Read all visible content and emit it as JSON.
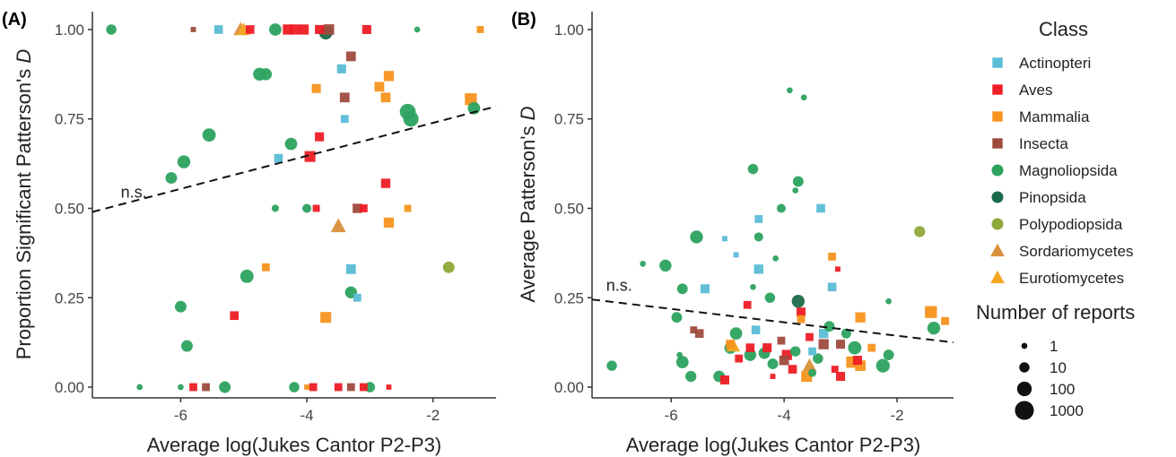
{
  "colors": {
    "Actinopteri": "#5bbcd6",
    "Aves": "#ee1c25",
    "Mammalia": "#f7941d",
    "Insecta": "#9e4b3c",
    "Magnoliopsida": "#2ca25f",
    "Pinopsida": "#1b6b4a",
    "Polypodiopsida": "#8ea93a",
    "Sordariomycetes": "#d9903a",
    "Eurotiomycetes": "#f5a623"
  },
  "legend": {
    "class_title": "Class",
    "classes": [
      {
        "name": "Actinopteri",
        "shape": "square"
      },
      {
        "name": "Aves",
        "shape": "square"
      },
      {
        "name": "Mammalia",
        "shape": "square"
      },
      {
        "name": "Insecta",
        "shape": "square"
      },
      {
        "name": "Magnoliopsida",
        "shape": "circle"
      },
      {
        "name": "Pinopsida",
        "shape": "circle"
      },
      {
        "name": "Polypodiopsida",
        "shape": "circle"
      },
      {
        "name": "Sordariomycetes",
        "shape": "triangle"
      },
      {
        "name": "Eurotiomycetes",
        "shape": "triangle"
      }
    ],
    "size_title": "Number of reports",
    "sizes": [
      {
        "label": "1",
        "n": 1
      },
      {
        "label": "10",
        "n": 10
      },
      {
        "label": "100",
        "n": 100
      },
      {
        "label": "1000",
        "n": 1000
      }
    ]
  },
  "chart_data": [
    {
      "type": "scatter",
      "panel_label": "(A)",
      "xlabel": "Average log(Jukes Cantor P2-P3)",
      "ylabel_prefix": "Proportion Significant Patterson's ",
      "ylabel_italic": "D",
      "xlim": [
        -7.4,
        -1.0
      ],
      "ylim": [
        -0.03,
        1.05
      ],
      "xticks": [
        -6,
        -4,
        -2
      ],
      "xtick_labels": [
        "-6",
        "-4",
        "-2"
      ],
      "yticks": [
        0,
        0.25,
        0.5,
        0.75,
        1.0
      ],
      "ytick_labels": [
        "0.00",
        "0.25",
        "0.50",
        "0.75",
        "1.00"
      ],
      "trend": {
        "style": "dashed",
        "label": "n.s.",
        "label_x": -6.95,
        "label_y": 0.53,
        "x": [
          -7.4,
          -1.0
        ],
        "y": [
          0.49,
          0.785
        ]
      },
      "points": [
        {
          "x": -7.1,
          "y": 1.0,
          "c": "Magnoliopsida",
          "n": 10
        },
        {
          "x": -6.65,
          "y": 0.0,
          "c": "Magnoliopsida",
          "n": 1
        },
        {
          "x": -6.15,
          "y": 0.585,
          "c": "Magnoliopsida",
          "n": 20
        },
        {
          "x": -5.95,
          "y": 0.63,
          "c": "Magnoliopsida",
          "n": 40
        },
        {
          "x": -6.0,
          "y": 0.225,
          "c": "Magnoliopsida",
          "n": 20
        },
        {
          "x": -5.9,
          "y": 0.115,
          "c": "Magnoliopsida",
          "n": 20
        },
        {
          "x": -6.0,
          "y": 0.0,
          "c": "Magnoliopsida",
          "n": 1
        },
        {
          "x": -5.8,
          "y": 0.0,
          "c": "Aves",
          "n": 5
        },
        {
          "x": -5.6,
          "y": 0.0,
          "c": "Insecta",
          "n": 5
        },
        {
          "x": -5.55,
          "y": 0.705,
          "c": "Magnoliopsida",
          "n": 50
        },
        {
          "x": -5.8,
          "y": 1.0,
          "c": "Insecta",
          "n": 1
        },
        {
          "x": -5.4,
          "y": 1.0,
          "c": "Actinopteri",
          "n": 8
        },
        {
          "x": -5.15,
          "y": 0.2,
          "c": "Aves",
          "n": 8
        },
        {
          "x": -4.95,
          "y": 0.31,
          "c": "Magnoliopsida",
          "n": 50
        },
        {
          "x": -5.3,
          "y": 0.0,
          "c": "Magnoliopsida",
          "n": 20
        },
        {
          "x": -5.05,
          "y": 1.0,
          "c": "Sordariomycetes",
          "n": 25
        },
        {
          "x": -5.0,
          "y": 1.0,
          "c": "Eurotiomycetes",
          "n": 15
        },
        {
          "x": -4.9,
          "y": 1.0,
          "c": "Aves",
          "n": 8
        },
        {
          "x": -4.75,
          "y": 0.875,
          "c": "Magnoliopsida",
          "n": 40
        },
        {
          "x": -4.65,
          "y": 0.875,
          "c": "Magnoliopsida",
          "n": 25
        },
        {
          "x": -4.65,
          "y": 0.335,
          "c": "Mammalia",
          "n": 5
        },
        {
          "x": -4.5,
          "y": 1.0,
          "c": "Magnoliopsida",
          "n": 30
        },
        {
          "x": -4.5,
          "y": 0.5,
          "c": "Magnoliopsida",
          "n": 2
        },
        {
          "x": -4.45,
          "y": 0.64,
          "c": "Actinopteri",
          "n": 8
        },
        {
          "x": -4.3,
          "y": 1.0,
          "c": "Aves",
          "n": 20
        },
        {
          "x": -4.2,
          "y": 1.0,
          "c": "Aves",
          "n": 20
        },
        {
          "x": -4.25,
          "y": 0.68,
          "c": "Magnoliopsida",
          "n": 30
        },
        {
          "x": -4.2,
          "y": 0.0,
          "c": "Magnoliopsida",
          "n": 10
        },
        {
          "x": -4.0,
          "y": 0.5,
          "c": "Magnoliopsida",
          "n": 5
        },
        {
          "x": -3.95,
          "y": 0.645,
          "c": "Aves",
          "n": 30
        },
        {
          "x": -4.05,
          "y": 1.0,
          "c": "Aves",
          "n": 20
        },
        {
          "x": -4.0,
          "y": 0.0,
          "c": "Mammalia",
          "n": 1
        },
        {
          "x": -3.9,
          "y": 0.0,
          "c": "Aves",
          "n": 5
        },
        {
          "x": -3.85,
          "y": 0.835,
          "c": "Mammalia",
          "n": 10
        },
        {
          "x": -3.8,
          "y": 0.7,
          "c": "Aves",
          "n": 10
        },
        {
          "x": -3.85,
          "y": 0.5,
          "c": "Aves",
          "n": 3
        },
        {
          "x": -3.8,
          "y": 1.0,
          "c": "Aves",
          "n": 10
        },
        {
          "x": -3.7,
          "y": 0.99,
          "c": "Pinopsida",
          "n": 40
        },
        {
          "x": -3.65,
          "y": 1.0,
          "c": "Insecta",
          "n": 25
        },
        {
          "x": -3.7,
          "y": 0.195,
          "c": "Mammalia",
          "n": 30
        },
        {
          "x": -3.5,
          "y": 0.0,
          "c": "Aves",
          "n": 5
        },
        {
          "x": -3.5,
          "y": 0.45,
          "c": "Sordariomycetes",
          "n": 35
        },
        {
          "x": -3.45,
          "y": 0.89,
          "c": "Actinopteri",
          "n": 10
        },
        {
          "x": -3.4,
          "y": 0.75,
          "c": "Actinopteri",
          "n": 5
        },
        {
          "x": -3.4,
          "y": 0.81,
          "c": "Insecta",
          "n": 15
        },
        {
          "x": -3.3,
          "y": 0.925,
          "c": "Insecta",
          "n": 15
        },
        {
          "x": -3.3,
          "y": 0.265,
          "c": "Magnoliopsida",
          "n": 25
        },
        {
          "x": -3.3,
          "y": 0.33,
          "c": "Actinopteri",
          "n": 15
        },
        {
          "x": -3.2,
          "y": 0.25,
          "c": "Actinopteri",
          "n": 5
        },
        {
          "x": -3.2,
          "y": 0.5,
          "c": "Insecta",
          "n": 12
        },
        {
          "x": -3.1,
          "y": 0.0,
          "c": "Aves",
          "n": 5
        },
        {
          "x": -3.1,
          "y": 0.5,
          "c": "Aves",
          "n": 5
        },
        {
          "x": -3.3,
          "y": 0.0,
          "c": "Insecta",
          "n": 5
        },
        {
          "x": -3.0,
          "y": 0.0,
          "c": "Magnoliopsida",
          "n": 10
        },
        {
          "x": -3.05,
          "y": 1.0,
          "c": "Aves",
          "n": 10
        },
        {
          "x": -2.85,
          "y": 0.84,
          "c": "Mammalia",
          "n": 15
        },
        {
          "x": -2.75,
          "y": 0.81,
          "c": "Mammalia",
          "n": 15
        },
        {
          "x": -2.75,
          "y": 0.57,
          "c": "Aves",
          "n": 12
        },
        {
          "x": -2.7,
          "y": 0.87,
          "c": "Mammalia",
          "n": 20
        },
        {
          "x": -2.7,
          "y": 0.46,
          "c": "Mammalia",
          "n": 20
        },
        {
          "x": -2.7,
          "y": 0.0,
          "c": "Aves",
          "n": 1
        },
        {
          "x": -2.4,
          "y": 0.77,
          "c": "Magnoliopsida",
          "n": 200
        },
        {
          "x": -2.4,
          "y": 0.5,
          "c": "Mammalia",
          "n": 3
        },
        {
          "x": -2.35,
          "y": 0.75,
          "c": "Magnoliopsida",
          "n": 150
        },
        {
          "x": -2.25,
          "y": 1.0,
          "c": "Magnoliopsida",
          "n": 1
        },
        {
          "x": -1.75,
          "y": 0.335,
          "c": "Polypodiopsida",
          "n": 20
        },
        {
          "x": -1.4,
          "y": 0.805,
          "c": "Mammalia",
          "n": 60
        },
        {
          "x": -1.35,
          "y": 0.78,
          "c": "Magnoliopsida",
          "n": 30
        },
        {
          "x": -1.25,
          "y": 1.0,
          "c": "Mammalia",
          "n": 3
        }
      ]
    },
    {
      "type": "scatter",
      "panel_label": "(B)",
      "xlabel": "Average log(Jukes Cantor P2-P3)",
      "ylabel_prefix": "Average Patterson's ",
      "ylabel_italic": "D",
      "xlim": [
        -7.4,
        -1.0
      ],
      "ylim": [
        -0.03,
        1.05
      ],
      "xticks": [
        -6,
        -4,
        -2
      ],
      "xtick_labels": [
        "-6",
        "-4",
        "-2"
      ],
      "yticks": [
        0,
        0.25,
        0.5,
        0.75,
        1.0
      ],
      "ytick_labels": [
        "0.00",
        "0.25",
        "0.50",
        "0.75",
        "1.00"
      ],
      "trend": {
        "style": "dashed",
        "label": "n.s.",
        "label_x": -7.15,
        "label_y": 0.27,
        "x": [
          -7.4,
          -1.0
        ],
        "y": [
          0.245,
          0.125
        ]
      },
      "points": [
        {
          "x": -7.05,
          "y": 0.06,
          "c": "Magnoliopsida",
          "n": 10
        },
        {
          "x": -6.5,
          "y": 0.345,
          "c": "Magnoliopsida",
          "n": 1
        },
        {
          "x": -6.1,
          "y": 0.34,
          "c": "Magnoliopsida",
          "n": 25
        },
        {
          "x": -5.9,
          "y": 0.195,
          "c": "Magnoliopsida",
          "n": 12
        },
        {
          "x": -5.85,
          "y": 0.09,
          "c": "Magnoliopsida",
          "n": 1
        },
        {
          "x": -5.8,
          "y": 0.275,
          "c": "Magnoliopsida",
          "n": 12
        },
        {
          "x": -5.8,
          "y": 0.07,
          "c": "Magnoliopsida",
          "n": 30
        },
        {
          "x": -5.65,
          "y": 0.03,
          "c": "Magnoliopsida",
          "n": 15
        },
        {
          "x": -5.6,
          "y": 0.16,
          "c": "Insecta",
          "n": 3
        },
        {
          "x": -5.55,
          "y": 0.42,
          "c": "Magnoliopsida",
          "n": 40
        },
        {
          "x": -5.5,
          "y": 0.15,
          "c": "Insecta",
          "n": 8
        },
        {
          "x": -5.4,
          "y": 0.275,
          "c": "Actinopteri",
          "n": 10
        },
        {
          "x": -5.15,
          "y": 0.03,
          "c": "Magnoliopsida",
          "n": 20
        },
        {
          "x": -5.05,
          "y": 0.02,
          "c": "Aves",
          "n": 10
        },
        {
          "x": -5.05,
          "y": 0.415,
          "c": "Actinopteri",
          "n": 1
        },
        {
          "x": -4.95,
          "y": 0.11,
          "c": "Magnoliopsida",
          "n": 25
        },
        {
          "x": -4.95,
          "y": 0.12,
          "c": "Mammalia",
          "n": 10
        },
        {
          "x": -4.9,
          "y": 0.115,
          "c": "Eurotiomycetes",
          "n": 20
        },
        {
          "x": -4.85,
          "y": 0.15,
          "c": "Magnoliopsida",
          "n": 30
        },
        {
          "x": -4.85,
          "y": 0.37,
          "c": "Actinopteri",
          "n": 1
        },
        {
          "x": -4.8,
          "y": 0.08,
          "c": "Aves",
          "n": 5
        },
        {
          "x": -4.65,
          "y": 0.23,
          "c": "Aves",
          "n": 5
        },
        {
          "x": -4.6,
          "y": 0.09,
          "c": "Magnoliopsida",
          "n": 25
        },
        {
          "x": -4.6,
          "y": 0.11,
          "c": "Aves",
          "n": 8
        },
        {
          "x": -4.55,
          "y": 0.61,
          "c": "Magnoliopsida",
          "n": 10
        },
        {
          "x": -4.55,
          "y": 0.28,
          "c": "Magnoliopsida",
          "n": 1
        },
        {
          "x": -4.5,
          "y": 0.16,
          "c": "Actinopteri",
          "n": 8
        },
        {
          "x": -4.45,
          "y": 0.47,
          "c": "Actinopteri",
          "n": 5
        },
        {
          "x": -4.45,
          "y": 0.42,
          "c": "Magnoliopsida",
          "n": 5
        },
        {
          "x": -4.45,
          "y": 0.33,
          "c": "Actinopteri",
          "n": 12
        },
        {
          "x": -4.35,
          "y": 0.095,
          "c": "Magnoliopsida",
          "n": 20
        },
        {
          "x": -4.3,
          "y": 0.11,
          "c": "Aves",
          "n": 10
        },
        {
          "x": -4.25,
          "y": 0.25,
          "c": "Magnoliopsida",
          "n": 10
        },
        {
          "x": -4.2,
          "y": 0.03,
          "c": "Aves",
          "n": 1
        },
        {
          "x": -4.2,
          "y": 0.065,
          "c": "Magnoliopsida",
          "n": 12
        },
        {
          "x": -4.15,
          "y": 0.36,
          "c": "Magnoliopsida",
          "n": 1
        },
        {
          "x": -4.05,
          "y": 0.5,
          "c": "Magnoliopsida",
          "n": 5
        },
        {
          "x": -4.05,
          "y": 0.13,
          "c": "Insecta",
          "n": 5
        },
        {
          "x": -4.0,
          "y": 0.075,
          "c": "Insecta",
          "n": 15
        },
        {
          "x": -3.95,
          "y": 0.09,
          "c": "Aves",
          "n": 20
        },
        {
          "x": -3.9,
          "y": 0.83,
          "c": "Magnoliopsida",
          "n": 1
        },
        {
          "x": -3.8,
          "y": 0.55,
          "c": "Magnoliopsida",
          "n": 1
        },
        {
          "x": -3.85,
          "y": 0.05,
          "c": "Aves",
          "n": 8
        },
        {
          "x": -3.8,
          "y": 0.1,
          "c": "Magnoliopsida",
          "n": 10
        },
        {
          "x": -3.75,
          "y": 0.24,
          "c": "Pinopsida",
          "n": 40
        },
        {
          "x": -3.75,
          "y": 0.575,
          "c": "Magnoliopsida",
          "n": 12
        },
        {
          "x": -3.7,
          "y": 0.21,
          "c": "Aves",
          "n": 10
        },
        {
          "x": -3.7,
          "y": 0.19,
          "c": "Mammalia",
          "n": 5
        },
        {
          "x": -3.65,
          "y": 0.81,
          "c": "Magnoliopsida",
          "n": 1
        },
        {
          "x": -3.6,
          "y": 0.03,
          "c": "Mammalia",
          "n": 30
        },
        {
          "x": -3.55,
          "y": 0.06,
          "c": "Sordariomycetes",
          "n": 20
        },
        {
          "x": -3.55,
          "y": 0.14,
          "c": "Aves",
          "n": 5
        },
        {
          "x": -3.5,
          "y": 0.1,
          "c": "Actinopteri",
          "n": 5
        },
        {
          "x": -3.5,
          "y": 0.04,
          "c": "Magnoliopsida",
          "n": 3
        },
        {
          "x": -3.4,
          "y": 0.08,
          "c": "Magnoliopsida",
          "n": 10
        },
        {
          "x": -3.35,
          "y": 0.5,
          "c": "Actinopteri",
          "n": 8
        },
        {
          "x": -3.3,
          "y": 0.12,
          "c": "Insecta",
          "n": 20
        },
        {
          "x": -3.3,
          "y": 0.15,
          "c": "Actinopteri",
          "n": 12
        },
        {
          "x": -3.2,
          "y": 0.17,
          "c": "Magnoliopsida",
          "n": 12
        },
        {
          "x": -3.15,
          "y": 0.365,
          "c": "Mammalia",
          "n": 5
        },
        {
          "x": -3.15,
          "y": 0.28,
          "c": "Actinopteri",
          "n": 8
        },
        {
          "x": -3.1,
          "y": 0.05,
          "c": "Aves",
          "n": 3
        },
        {
          "x": -3.05,
          "y": 0.33,
          "c": "Aves",
          "n": 1
        },
        {
          "x": -3.0,
          "y": 0.12,
          "c": "Insecta",
          "n": 10
        },
        {
          "x": -3.0,
          "y": 0.03,
          "c": "Aves",
          "n": 10
        },
        {
          "x": -2.9,
          "y": 0.15,
          "c": "Magnoliopsida",
          "n": 8
        },
        {
          "x": -2.8,
          "y": 0.07,
          "c": "Mammalia",
          "n": 40
        },
        {
          "x": -2.75,
          "y": 0.11,
          "c": "Magnoliopsida",
          "n": 50
        },
        {
          "x": -2.7,
          "y": 0.075,
          "c": "Aves",
          "n": 10
        },
        {
          "x": -2.65,
          "y": 0.06,
          "c": "Mammalia",
          "n": 25
        },
        {
          "x": -2.65,
          "y": 0.195,
          "c": "Mammalia",
          "n": 20
        },
        {
          "x": -2.45,
          "y": 0.11,
          "c": "Mammalia",
          "n": 5
        },
        {
          "x": -2.25,
          "y": 0.06,
          "c": "Magnoliopsida",
          "n": 60
        },
        {
          "x": -2.15,
          "y": 0.24,
          "c": "Magnoliopsida",
          "n": 1
        },
        {
          "x": -2.15,
          "y": 0.09,
          "c": "Magnoliopsida",
          "n": 12
        },
        {
          "x": -1.6,
          "y": 0.435,
          "c": "Polypodiopsida",
          "n": 15
        },
        {
          "x": -1.4,
          "y": 0.21,
          "c": "Mammalia",
          "n": 60
        },
        {
          "x": -1.35,
          "y": 0.165,
          "c": "Magnoliopsida",
          "n": 40
        },
        {
          "x": -1.15,
          "y": 0.185,
          "c": "Mammalia",
          "n": 5
        }
      ]
    }
  ]
}
